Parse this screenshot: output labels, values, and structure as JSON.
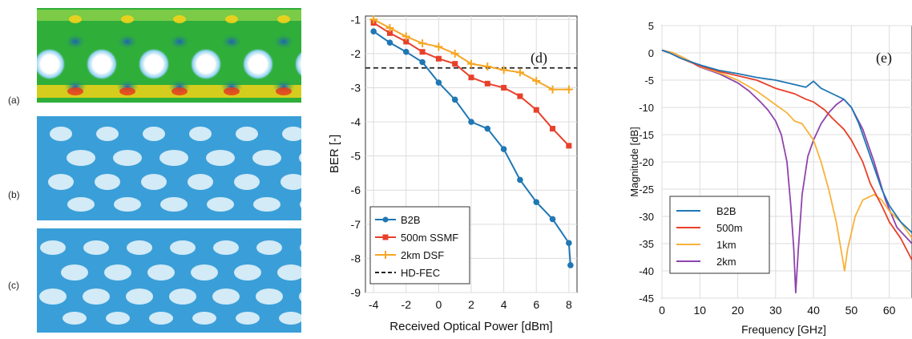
{
  "eye_diagrams": {
    "labels": [
      "(a)",
      "(b)",
      "(c)"
    ],
    "colors": {
      "a_background": "#2fae3a",
      "a_band": "#f2d21a",
      "a_hot": "#e8331f",
      "bc_trace": "#3a9fd8",
      "bc_opening": "#ffffff"
    }
  },
  "chart_data": [
    {
      "type": "line",
      "panel_label": "(d)",
      "xlabel": "Received Optical Power [dBm]",
      "ylabel": "BER [-]",
      "xlim": [
        -4.5,
        8.5
      ],
      "ylim": [
        -9,
        -0.9
      ],
      "y_scale": "log10 exponent (-1 at top, -9 at bottom)",
      "x_ticks": [
        "-4",
        "-2",
        "0",
        "2",
        "4",
        "6",
        "8"
      ],
      "x_tick_values": [
        -4,
        -2,
        0,
        2,
        4,
        6,
        8
      ],
      "y_ticks": [
        "-1",
        "-2",
        "-3",
        "-4",
        "-5",
        "-6",
        "-7",
        "-8",
        "-9"
      ],
      "y_tick_values": [
        -1,
        -2,
        -3,
        -4,
        -5,
        -6,
        -7,
        -8,
        -9
      ],
      "grid": true,
      "legend_position": "bottom-left",
      "x": [
        -4,
        -3,
        -2,
        -1,
        0,
        1,
        2,
        3,
        4,
        5,
        6,
        7,
        8
      ],
      "series": [
        {
          "name": "B2B",
          "color": "#1f77b4",
          "marker": "circle",
          "y": [
            -1.35,
            -1.68,
            -1.95,
            -2.25,
            -2.85,
            -3.35,
            -4.0,
            -4.2,
            -4.8,
            -5.7,
            -6.35,
            -6.85,
            -7.55,
            -8.2
          ],
          "x": [
            -4,
            -3,
            -2,
            -1,
            0,
            1,
            2,
            3,
            4,
            5,
            6,
            7,
            8,
            8.1
          ]
        },
        {
          "name": "500m SSMF",
          "color": "#e8402a",
          "marker": "square",
          "y": [
            -1.1,
            -1.4,
            -1.65,
            -1.95,
            -2.15,
            -2.3,
            -2.7,
            -2.88,
            -3.0,
            -3.25,
            -3.65,
            -4.2,
            -4.7
          ],
          "x": [
            -4,
            -3,
            -2,
            -1,
            0,
            1,
            2,
            3,
            4,
            5,
            6,
            7,
            8
          ]
        },
        {
          "name": "2km DSF",
          "color": "#f5a623",
          "marker": "plus",
          "y": [
            -1.0,
            -1.25,
            -1.5,
            -1.7,
            -1.8,
            -2.0,
            -2.3,
            -2.38,
            -2.48,
            -2.55,
            -2.8,
            -3.05,
            -3.05
          ],
          "x": [
            -4,
            -3,
            -2,
            -1,
            0,
            1,
            2,
            3,
            4,
            5,
            6,
            7,
            8
          ]
        }
      ],
      "threshold": {
        "name": "HD-FEC",
        "y": -2.42,
        "style": "dashed",
        "color": "#222222"
      }
    },
    {
      "type": "line",
      "panel_label": "(e)",
      "xlabel": "Frequency [GHz]",
      "ylabel": "Magnitude [dB]",
      "xlim": [
        0,
        66
      ],
      "ylim": [
        -45,
        5
      ],
      "x_ticks": [
        "0",
        "10",
        "20",
        "30",
        "40",
        "50",
        "60"
      ],
      "x_tick_values": [
        0,
        10,
        20,
        30,
        40,
        50,
        60
      ],
      "y_ticks": [
        "5",
        "0",
        "-5",
        "-10",
        "-15",
        "-20",
        "-25",
        "-30",
        "-35",
        "-40",
        "-45"
      ],
      "y_tick_values": [
        5,
        0,
        -5,
        -10,
        -15,
        -20,
        -25,
        -30,
        -35,
        -40,
        -45
      ],
      "grid": true,
      "legend_position": "bottom-left",
      "series": [
        {
          "name": "B2B",
          "color": "#1f77b4",
          "points": [
            [
              0,
              0.5
            ],
            [
              2,
              0
            ],
            [
              5,
              -1
            ],
            [
              10,
              -2.2
            ],
            [
              15,
              -3.2
            ],
            [
              20,
              -3.8
            ],
            [
              25,
              -4.5
            ],
            [
              30,
              -5
            ],
            [
              35,
              -5.8
            ],
            [
              38,
              -6.3
            ],
            [
              40,
              -5.2
            ],
            [
              42,
              -6.5
            ],
            [
              45,
              -7.5
            ],
            [
              48,
              -8.5
            ],
            [
              50,
              -10
            ],
            [
              52,
              -13
            ],
            [
              55,
              -19
            ],
            [
              58,
              -25
            ],
            [
              60,
              -28
            ],
            [
              63,
              -31
            ],
            [
              66,
              -33
            ]
          ]
        },
        {
          "name": "500m",
          "color": "#e8402a",
          "points": [
            [
              0,
              0.5
            ],
            [
              2,
              0
            ],
            [
              5,
              -1
            ],
            [
              10,
              -2.4
            ],
            [
              15,
              -3.4
            ],
            [
              20,
              -4.2
            ],
            [
              25,
              -5
            ],
            [
              30,
              -6.5
            ],
            [
              35,
              -7.5
            ],
            [
              38,
              -8.5
            ],
            [
              40,
              -9
            ],
            [
              43,
              -10.5
            ],
            [
              45,
              -12
            ],
            [
              48,
              -14
            ],
            [
              50,
              -16
            ],
            [
              53,
              -20
            ],
            [
              55,
              -24
            ],
            [
              58,
              -28
            ],
            [
              60,
              -31
            ],
            [
              63,
              -34
            ],
            [
              66,
              -38
            ]
          ]
        },
        {
          "name": "1km",
          "color": "#f7b23b",
          "points": [
            [
              0,
              0.5
            ],
            [
              3,
              0
            ],
            [
              6,
              -1
            ],
            [
              10,
              -2.5
            ],
            [
              15,
              -3.6
            ],
            [
              20,
              -5
            ],
            [
              25,
              -7
            ],
            [
              28,
              -8.5
            ],
            [
              30,
              -9.5
            ],
            [
              33,
              -11
            ],
            [
              35,
              -12.5
            ],
            [
              37,
              -13
            ],
            [
              40,
              -16
            ],
            [
              42,
              -20
            ],
            [
              44,
              -25
            ],
            [
              46,
              -31
            ],
            [
              47.5,
              -37
            ],
            [
              48.2,
              -40
            ],
            [
              49,
              -36
            ],
            [
              51,
              -30
            ],
            [
              53,
              -27
            ],
            [
              56,
              -26
            ],
            [
              58,
              -27
            ],
            [
              60,
              -29
            ],
            [
              63,
              -31
            ],
            [
              66,
              -34
            ]
          ]
        },
        {
          "name": "2km",
          "color": "#8e44ad",
          "points": [
            [
              0,
              0.5
            ],
            [
              3,
              0
            ],
            [
              6,
              -1
            ],
            [
              10,
              -2.6
            ],
            [
              15,
              -3.8
            ],
            [
              20,
              -5.5
            ],
            [
              23,
              -7
            ],
            [
              26,
              -9
            ],
            [
              28,
              -10.5
            ],
            [
              30,
              -12.5
            ],
            [
              31.5,
              -15
            ],
            [
              33,
              -20
            ],
            [
              34,
              -28
            ],
            [
              34.8,
              -36
            ],
            [
              35.3,
              -44
            ],
            [
              36,
              -36
            ],
            [
              37,
              -26
            ],
            [
              38.5,
              -19
            ],
            [
              40,
              -16
            ],
            [
              42,
              -13
            ],
            [
              44,
              -11
            ],
            [
              46,
              -9.5
            ],
            [
              48,
              -8.5
            ],
            [
              50,
              -10
            ],
            [
              53,
              -14
            ],
            [
              56,
              -20
            ],
            [
              59,
              -27
            ],
            [
              62,
              -32
            ],
            [
              66,
              -35
            ]
          ]
        }
      ]
    }
  ]
}
